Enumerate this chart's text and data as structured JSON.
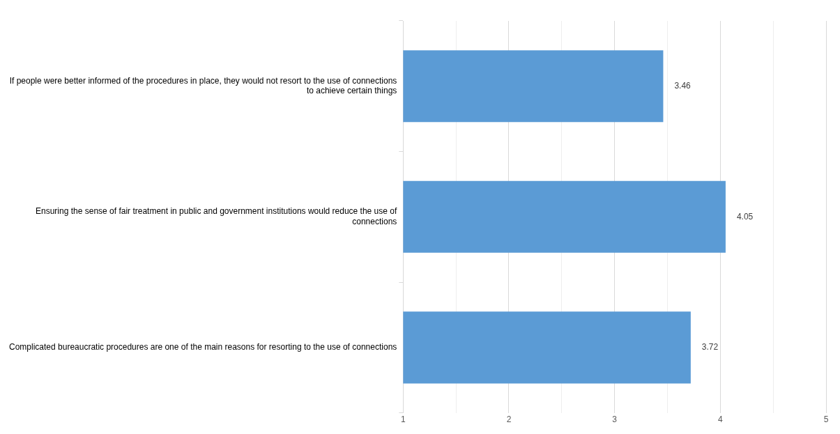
{
  "chart_data": {
    "type": "bar",
    "orientation": "horizontal",
    "categories": [
      "If people were better informed of the procedures in place, they would not resort to the use of connections to achieve certain things",
      "Ensuring the sense of fair treatment in public and government institutions would reduce the use of connections",
      "Complicated bureaucratic procedures are one of the main reasons for resorting to the use of connections"
    ],
    "values": [
      3.46,
      4.05,
      3.72
    ],
    "color": "#5b9bd5",
    "xlim": [
      1,
      5
    ],
    "xticks": [
      1,
      {
        "value": 1.5,
        "label": null
      },
      2,
      {
        "value": 2.5,
        "label": null
      },
      3,
      {
        "value": 3.5,
        "label": null
      },
      4,
      {
        "value": 4.5,
        "label": null
      },
      5
    ],
    "grid": "x",
    "data_labels": true,
    "legend": false
  }
}
